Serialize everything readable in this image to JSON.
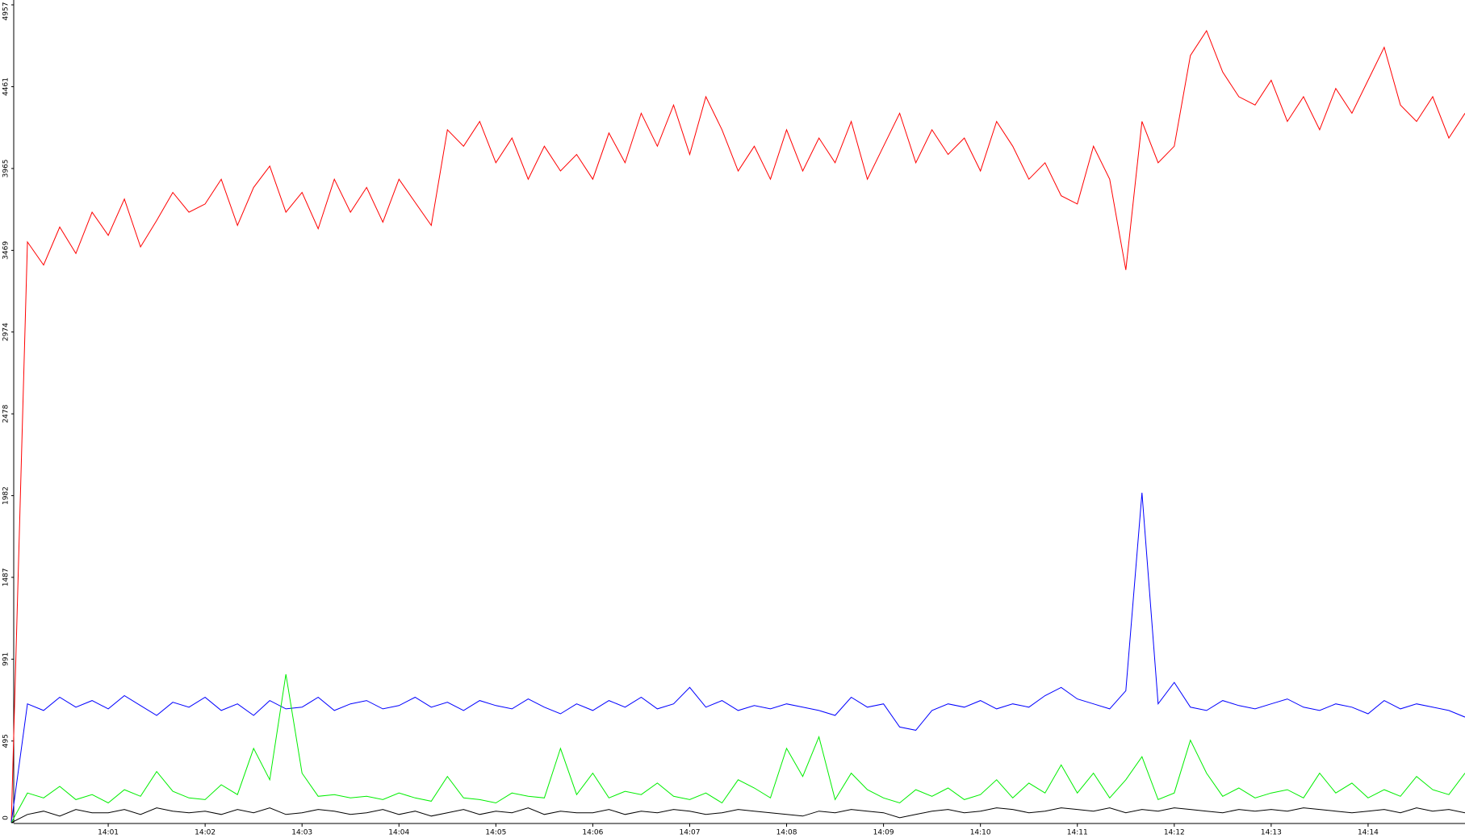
{
  "chart_data": {
    "type": "line",
    "categories": [
      null,
      null,
      null,
      null,
      null,
      null,
      "14:01",
      null,
      null,
      null,
      null,
      null,
      "14:02",
      null,
      null,
      null,
      null,
      null,
      "14:03",
      null,
      null,
      null,
      null,
      null,
      "14:04",
      null,
      null,
      null,
      null,
      null,
      "14:05",
      null,
      null,
      null,
      null,
      null,
      "14:06",
      null,
      null,
      null,
      null,
      null,
      "14:07",
      null,
      null,
      null,
      null,
      null,
      "14:08",
      null,
      null,
      null,
      null,
      null,
      "14:09",
      null,
      null,
      null,
      null,
      null,
      "14:10",
      null,
      null,
      null,
      null,
      null,
      "14:11",
      null,
      null,
      null,
      null,
      null,
      "14:12",
      null,
      null,
      null,
      null,
      null,
      "14:13",
      null,
      null,
      null,
      null,
      null,
      "14:14",
      null,
      null,
      null,
      null,
      null,
      null
    ],
    "ylim": [
      0,
      4957
    ],
    "yticks": [
      0,
      495,
      991,
      1487,
      1982,
      2478,
      2974,
      3469,
      3965,
      4461,
      4957
    ],
    "series": [
      {
        "color": "#ff0000",
        "values": [
          0,
          3520,
          3380,
          3610,
          3450,
          3700,
          3560,
          3780,
          3490,
          3650,
          3820,
          3700,
          3750,
          3900,
          3620,
          3850,
          3980,
          3700,
          3820,
          3600,
          3900,
          3700,
          3850,
          3640,
          3900,
          3760,
          3620,
          4200,
          4100,
          4250,
          4000,
          4150,
          3900,
          4100,
          3950,
          4050,
          3900,
          4180,
          4000,
          4300,
          4100,
          4350,
          4050,
          4400,
          4200,
          3950,
          4100,
          3900,
          4200,
          3950,
          4150,
          4000,
          4250,
          3900,
          4100,
          4300,
          4000,
          4200,
          4050,
          4150,
          3950,
          4250,
          4100,
          3900,
          4000,
          3800,
          3750,
          4100,
          3900,
          3350,
          4250,
          4000,
          4100,
          4650,
          4800,
          4550,
          4400,
          4350,
          4500,
          4250,
          4400,
          4200,
          4450,
          4300,
          4500,
          4700,
          4350,
          4250,
          4400,
          4150,
          4300
        ]
      },
      {
        "color": "#0000ff",
        "values": [
          0,
          720,
          680,
          760,
          700,
          740,
          690,
          770,
          710,
          650,
          730,
          700,
          760,
          680,
          720,
          650,
          740,
          690,
          700,
          760,
          680,
          720,
          740,
          690,
          710,
          760,
          700,
          730,
          680,
          740,
          710,
          690,
          750,
          700,
          660,
          720,
          680,
          740,
          700,
          760,
          690,
          720,
          820,
          700,
          740,
          680,
          710,
          690,
          720,
          700,
          680,
          650,
          760,
          700,
          720,
          580,
          560,
          680,
          720,
          700,
          740,
          690,
          720,
          700,
          770,
          820,
          750,
          720,
          690,
          800,
          2000,
          720,
          850,
          700,
          680,
          740,
          710,
          690,
          720,
          750,
          700,
          680,
          720,
          700,
          660,
          740,
          690,
          720,
          700,
          680,
          640
        ]
      },
      {
        "color": "#00ee00",
        "values": [
          0,
          180,
          150,
          220,
          140,
          170,
          120,
          200,
          160,
          310,
          190,
          150,
          140,
          230,
          170,
          450,
          260,
          900,
          300,
          160,
          170,
          150,
          160,
          140,
          180,
          150,
          130,
          280,
          150,
          140,
          120,
          180,
          160,
          150,
          450,
          170,
          300,
          150,
          190,
          170,
          240,
          160,
          140,
          180,
          120,
          260,
          210,
          150,
          450,
          280,
          520,
          140,
          300,
          200,
          150,
          120,
          200,
          160,
          210,
          140,
          170,
          260,
          150,
          240,
          180,
          350,
          180,
          300,
          150,
          260,
          400,
          140,
          180,
          500,
          300,
          160,
          210,
          150,
          180,
          200,
          150,
          300,
          180,
          240,
          150,
          200,
          160,
          280,
          200,
          170,
          300
        ]
      },
      {
        "color": "#000000",
        "values": [
          0,
          50,
          70,
          40,
          80,
          60,
          60,
          80,
          50,
          90,
          70,
          60,
          70,
          50,
          80,
          60,
          90,
          50,
          60,
          80,
          70,
          50,
          60,
          80,
          50,
          70,
          40,
          60,
          80,
          50,
          70,
          60,
          90,
          50,
          70,
          60,
          60,
          80,
          50,
          70,
          60,
          80,
          70,
          50,
          60,
          80,
          70,
          60,
          50,
          40,
          70,
          60,
          80,
          70,
          60,
          30,
          50,
          70,
          80,
          60,
          70,
          90,
          80,
          60,
          70,
          90,
          80,
          70,
          90,
          60,
          80,
          70,
          90,
          80,
          70,
          60,
          80,
          70,
          80,
          70,
          90,
          80,
          70,
          60,
          70,
          80,
          60,
          90,
          70,
          80,
          60
        ]
      }
    ]
  }
}
